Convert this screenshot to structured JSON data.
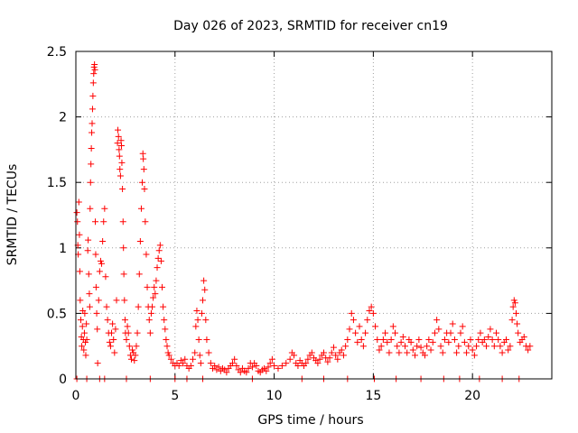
{
  "chart_data": {
    "type": "scatter",
    "title": "Day 026 of 2023, SRMTID for receiver cn19",
    "xlabel": "GPS time / hours",
    "ylabel": "SRMTID / TECUs",
    "xlim": [
      0,
      24
    ],
    "ylim": [
      0,
      2.5
    ],
    "xticks": [
      0,
      5,
      10,
      15,
      20
    ],
    "xtick_labels": [
      "0",
      "5",
      "10",
      "15",
      "20"
    ],
    "yticks": [
      0,
      0.5,
      1,
      1.5,
      2,
      2.5
    ],
    "ytick_labels": [
      "0",
      "0.5",
      "1",
      "1.5",
      "2",
      "2.5"
    ],
    "grid": true,
    "marker": "+",
    "color": "#ff0000",
    "series": [
      {
        "name": "SRMTID",
        "points": [
          [
            0.05,
            1.27
          ],
          [
            0.08,
            1.2
          ],
          [
            0.1,
            1.02
          ],
          [
            0.12,
            0.95
          ],
          [
            0.15,
            1.35
          ],
          [
            0.18,
            1.1
          ],
          [
            0.2,
            0.82
          ],
          [
            0.22,
            0.6
          ],
          [
            0.25,
            0.45
          ],
          [
            0.28,
            0.32
          ],
          [
            0.3,
            0.25
          ],
          [
            0.33,
            0.4
          ],
          [
            0.35,
            0.52
          ],
          [
            0.38,
            0.3
          ],
          [
            0.4,
            0.22
          ],
          [
            0.43,
            0.35
          ],
          [
            0.45,
            0.5
          ],
          [
            0.48,
            0.28
          ],
          [
            0.5,
            0.18
          ],
          [
            0.53,
            0.42
          ],
          [
            0.55,
            0.3
          ],
          [
            0.6,
            0.98
          ],
          [
            0.62,
            1.06
          ],
          [
            0.65,
            0.8
          ],
          [
            0.68,
            0.65
          ],
          [
            0.7,
            0.55
          ],
          [
            0.72,
            1.3
          ],
          [
            0.74,
            1.5
          ],
          [
            0.76,
            1.64
          ],
          [
            0.78,
            1.76
          ],
          [
            0.8,
            1.88
          ],
          [
            0.82,
            1.95
          ],
          [
            0.84,
            2.06
          ],
          [
            0.86,
            2.16
          ],
          [
            0.88,
            2.26
          ],
          [
            0.9,
            2.33
          ],
          [
            0.92,
            2.38
          ],
          [
            0.94,
            2.4
          ],
          [
            0.96,
            2.36
          ],
          [
            0.98,
            1.2
          ],
          [
            1.0,
            0.95
          ],
          [
            1.02,
            0.7
          ],
          [
            1.05,
            0.5
          ],
          [
            1.08,
            0.38
          ],
          [
            1.1,
            0.12
          ],
          [
            1.15,
            0.6
          ],
          [
            1.2,
            0.82
          ],
          [
            1.25,
            0.9
          ],
          [
            1.3,
            0.88
          ],
          [
            1.35,
            1.05
          ],
          [
            1.4,
            1.2
          ],
          [
            1.45,
            1.3
          ],
          [
            1.5,
            0.78
          ],
          [
            1.55,
            0.55
          ],
          [
            1.6,
            0.45
          ],
          [
            1.65,
            0.35
          ],
          [
            1.7,
            0.28
          ],
          [
            1.75,
            0.25
          ],
          [
            1.8,
            0.35
          ],
          [
            1.85,
            0.42
          ],
          [
            1.9,
            0.3
          ],
          [
            1.95,
            0.2
          ],
          [
            2.0,
            0.38
          ],
          [
            2.05,
            0.6
          ],
          [
            2.1,
            1.8
          ],
          [
            2.12,
            1.9
          ],
          [
            2.15,
            1.85
          ],
          [
            2.18,
            1.75
          ],
          [
            2.2,
            1.7
          ],
          [
            2.22,
            1.6
          ],
          [
            2.25,
            1.55
          ],
          [
            2.28,
            1.82
          ],
          [
            2.3,
            1.78
          ],
          [
            2.32,
            1.65
          ],
          [
            2.35,
            1.45
          ],
          [
            2.38,
            1.2
          ],
          [
            2.4,
            1.0
          ],
          [
            2.42,
            0.8
          ],
          [
            2.45,
            0.6
          ],
          [
            2.48,
            0.45
          ],
          [
            2.5,
            0.35
          ],
          [
            2.55,
            0.3
          ],
          [
            2.6,
            0.4
          ],
          [
            2.65,
            0.35
          ],
          [
            2.7,
            0.25
          ],
          [
            2.75,
            0.18
          ],
          [
            2.8,
            0.15
          ],
          [
            2.85,
            0.22
          ],
          [
            2.9,
            0.2
          ],
          [
            2.95,
            0.14
          ],
          [
            3.0,
            0.18
          ],
          [
            3.05,
            0.25
          ],
          [
            3.1,
            0.35
          ],
          [
            3.15,
            0.55
          ],
          [
            3.2,
            0.8
          ],
          [
            3.25,
            1.05
          ],
          [
            3.3,
            1.3
          ],
          [
            3.35,
            1.5
          ],
          [
            3.38,
            1.72
          ],
          [
            3.4,
            1.68
          ],
          [
            3.43,
            1.6
          ],
          [
            3.46,
            1.45
          ],
          [
            3.5,
            1.2
          ],
          [
            3.55,
            0.95
          ],
          [
            3.6,
            0.7
          ],
          [
            3.65,
            0.55
          ],
          [
            3.7,
            0.45
          ],
          [
            3.75,
            0.35
          ],
          [
            3.8,
            0.5
          ],
          [
            3.85,
            0.55
          ],
          [
            3.9,
            0.62
          ],
          [
            3.95,
            0.7
          ],
          [
            4.0,
            0.65
          ],
          [
            4.05,
            0.75
          ],
          [
            4.1,
            0.85
          ],
          [
            4.15,
            0.92
          ],
          [
            4.2,
            0.98
          ],
          [
            4.25,
            1.02
          ],
          [
            4.3,
            0.9
          ],
          [
            4.35,
            0.7
          ],
          [
            4.4,
            0.55
          ],
          [
            4.45,
            0.45
          ],
          [
            4.5,
            0.38
          ],
          [
            4.55,
            0.3
          ],
          [
            4.6,
            0.25
          ],
          [
            4.65,
            0.2
          ],
          [
            4.7,
            0.18
          ],
          [
            4.8,
            0.15
          ],
          [
            4.9,
            0.12
          ],
          [
            5.0,
            0.1
          ],
          [
            5.1,
            0.12
          ],
          [
            5.2,
            0.1
          ],
          [
            5.3,
            0.14
          ],
          [
            5.4,
            0.12
          ],
          [
            5.5,
            0.15
          ],
          [
            5.6,
            0.1
          ],
          [
            5.7,
            0.08
          ],
          [
            5.8,
            0.1
          ],
          [
            5.9,
            0.15
          ],
          [
            6.0,
            0.2
          ],
          [
            6.05,
            0.4
          ],
          [
            6.1,
            0.52
          ],
          [
            6.15,
            0.45
          ],
          [
            6.2,
            0.3
          ],
          [
            6.25,
            0.18
          ],
          [
            6.3,
            0.12
          ],
          [
            6.35,
            0.5
          ],
          [
            6.4,
            0.6
          ],
          [
            6.45,
            0.75
          ],
          [
            6.5,
            0.68
          ],
          [
            6.55,
            0.45
          ],
          [
            6.6,
            0.3
          ],
          [
            6.7,
            0.2
          ],
          [
            6.8,
            0.12
          ],
          [
            6.9,
            0.08
          ],
          [
            7.0,
            0.1
          ],
          [
            7.1,
            0.07
          ],
          [
            7.2,
            0.09
          ],
          [
            7.3,
            0.06
          ],
          [
            7.4,
            0.08
          ],
          [
            7.5,
            0.07
          ],
          [
            7.6,
            0.05
          ],
          [
            7.7,
            0.08
          ],
          [
            7.8,
            0.1
          ],
          [
            7.9,
            0.12
          ],
          [
            8.0,
            0.15
          ],
          [
            8.1,
            0.1
          ],
          [
            8.2,
            0.07
          ],
          [
            8.3,
            0.05
          ],
          [
            8.4,
            0.08
          ],
          [
            8.5,
            0.06
          ],
          [
            8.6,
            0.05
          ],
          [
            8.7,
            0.08
          ],
          [
            8.8,
            0.12
          ],
          [
            8.9,
            0.09
          ],
          [
            9.0,
            0.12
          ],
          [
            9.1,
            0.1
          ],
          [
            9.2,
            0.06
          ],
          [
            9.3,
            0.05
          ],
          [
            9.4,
            0.07
          ],
          [
            9.5,
            0.08
          ],
          [
            9.6,
            0.06
          ],
          [
            9.7,
            0.09
          ],
          [
            9.8,
            0.12
          ],
          [
            9.9,
            0.15
          ],
          [
            10.0,
            0.1
          ],
          [
            10.2,
            0.08
          ],
          [
            10.4,
            0.1
          ],
          [
            10.6,
            0.12
          ],
          [
            10.8,
            0.15
          ],
          [
            10.9,
            0.2
          ],
          [
            11.0,
            0.18
          ],
          [
            11.1,
            0.12
          ],
          [
            11.2,
            0.1
          ],
          [
            11.3,
            0.14
          ],
          [
            11.4,
            0.12
          ],
          [
            11.5,
            0.1
          ],
          [
            11.6,
            0.12
          ],
          [
            11.7,
            0.15
          ],
          [
            11.8,
            0.18
          ],
          [
            11.9,
            0.2
          ],
          [
            12.0,
            0.16
          ],
          [
            12.1,
            0.14
          ],
          [
            12.2,
            0.12
          ],
          [
            12.3,
            0.15
          ],
          [
            12.4,
            0.18
          ],
          [
            12.5,
            0.2
          ],
          [
            12.6,
            0.16
          ],
          [
            12.7,
            0.13
          ],
          [
            12.8,
            0.16
          ],
          [
            12.9,
            0.2
          ],
          [
            13.0,
            0.24
          ],
          [
            13.1,
            0.18
          ],
          [
            13.2,
            0.15
          ],
          [
            13.3,
            0.2
          ],
          [
            13.4,
            0.22
          ],
          [
            13.5,
            0.18
          ],
          [
            13.6,
            0.25
          ],
          [
            13.7,
            0.3
          ],
          [
            13.8,
            0.38
          ],
          [
            13.9,
            0.5
          ],
          [
            14.0,
            0.45
          ],
          [
            14.1,
            0.35
          ],
          [
            14.2,
            0.28
          ],
          [
            14.3,
            0.4
          ],
          [
            14.4,
            0.3
          ],
          [
            14.5,
            0.25
          ],
          [
            14.6,
            0.35
          ],
          [
            14.7,
            0.45
          ],
          [
            14.8,
            0.52
          ],
          [
            14.9,
            0.55
          ],
          [
            15.0,
            0.5
          ],
          [
            15.1,
            0.4
          ],
          [
            15.2,
            0.3
          ],
          [
            15.3,
            0.22
          ],
          [
            15.4,
            0.25
          ],
          [
            15.5,
            0.3
          ],
          [
            15.6,
            0.35
          ],
          [
            15.7,
            0.28
          ],
          [
            15.8,
            0.2
          ],
          [
            15.9,
            0.3
          ],
          [
            16.0,
            0.4
          ],
          [
            16.1,
            0.35
          ],
          [
            16.2,
            0.25
          ],
          [
            16.3,
            0.2
          ],
          [
            16.4,
            0.28
          ],
          [
            16.5,
            0.32
          ],
          [
            16.6,
            0.25
          ],
          [
            16.7,
            0.2
          ],
          [
            16.8,
            0.3
          ],
          [
            16.9,
            0.28
          ],
          [
            17.0,
            0.22
          ],
          [
            17.1,
            0.18
          ],
          [
            17.2,
            0.25
          ],
          [
            17.3,
            0.3
          ],
          [
            17.4,
            0.24
          ],
          [
            17.5,
            0.2
          ],
          [
            17.6,
            0.18
          ],
          [
            17.7,
            0.25
          ],
          [
            17.8,
            0.3
          ],
          [
            17.9,
            0.22
          ],
          [
            18.0,
            0.28
          ],
          [
            18.1,
            0.35
          ],
          [
            18.2,
            0.45
          ],
          [
            18.3,
            0.38
          ],
          [
            18.4,
            0.25
          ],
          [
            18.5,
            0.2
          ],
          [
            18.6,
            0.3
          ],
          [
            18.7,
            0.35
          ],
          [
            18.8,
            0.28
          ],
          [
            18.9,
            0.35
          ],
          [
            19.0,
            0.42
          ],
          [
            19.1,
            0.3
          ],
          [
            19.2,
            0.2
          ],
          [
            19.3,
            0.25
          ],
          [
            19.4,
            0.35
          ],
          [
            19.5,
            0.4
          ],
          [
            19.6,
            0.28
          ],
          [
            19.7,
            0.2
          ],
          [
            19.8,
            0.25
          ],
          [
            19.9,
            0.3
          ],
          [
            20.0,
            0.22
          ],
          [
            20.1,
            0.18
          ],
          [
            20.2,
            0.25
          ],
          [
            20.3,
            0.3
          ],
          [
            20.4,
            0.35
          ],
          [
            20.5,
            0.28
          ],
          [
            20.6,
            0.3
          ],
          [
            20.7,
            0.25
          ],
          [
            20.8,
            0.32
          ],
          [
            20.9,
            0.38
          ],
          [
            21.0,
            0.3
          ],
          [
            21.1,
            0.25
          ],
          [
            21.2,
            0.35
          ],
          [
            21.3,
            0.3
          ],
          [
            21.4,
            0.25
          ],
          [
            21.5,
            0.2
          ],
          [
            21.6,
            0.28
          ],
          [
            21.7,
            0.3
          ],
          [
            21.8,
            0.22
          ],
          [
            21.9,
            0.25
          ],
          [
            22.0,
            0.45
          ],
          [
            22.05,
            0.55
          ],
          [
            22.1,
            0.6
          ],
          [
            22.15,
            0.58
          ],
          [
            22.2,
            0.5
          ],
          [
            22.25,
            0.42
          ],
          [
            22.3,
            0.35
          ],
          [
            22.4,
            0.28
          ],
          [
            22.5,
            0.3
          ],
          [
            22.6,
            0.32
          ],
          [
            22.7,
            0.25
          ],
          [
            22.8,
            0.22
          ],
          [
            22.9,
            0.25
          ]
        ]
      }
    ],
    "gaps_at_zero": [
      0.05,
      0.55,
      1.2,
      1.45,
      2.55,
      3.75,
      5.0,
      5.6,
      6.4,
      8.9,
      11.4,
      12.5,
      13.7,
      15.05,
      16.15,
      17.4,
      18.55,
      19.35,
      20.35,
      21.5,
      22.35
    ]
  }
}
